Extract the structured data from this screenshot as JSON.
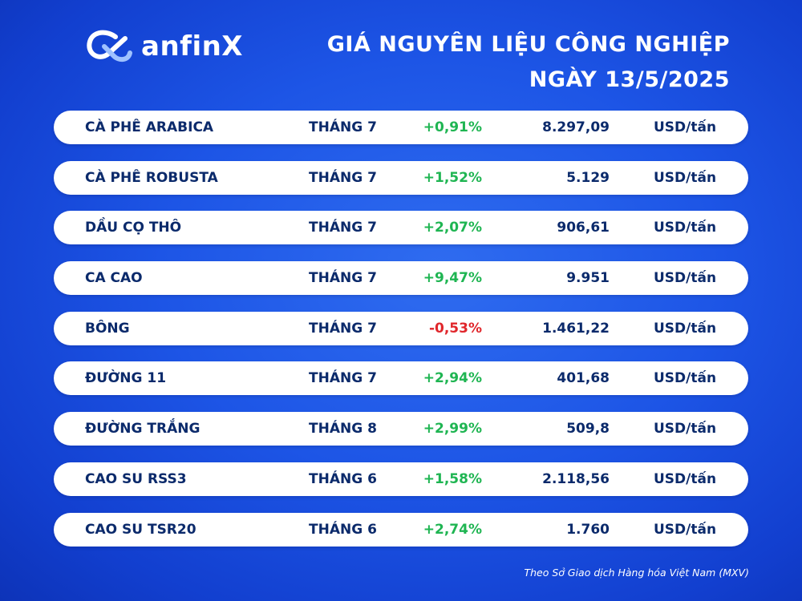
{
  "brand": {
    "name": "anfinX"
  },
  "header": {
    "title_line1": "GIÁ NGUYÊN LIỆU CÔNG NGHIỆP",
    "title_line2": "NGÀY 13/5/2025"
  },
  "colors": {
    "positive": "#1fb552",
    "negative": "#e0262b",
    "text": "#0b2a6b"
  },
  "rows": [
    {
      "name": "CÀ PHÊ ARABICA",
      "month": "THÁNG 7",
      "change": "+0,91%",
      "direction": "up",
      "price": "8.297,09",
      "unit": "USD/tấn"
    },
    {
      "name": "CÀ PHÊ ROBUSTA",
      "month": "THÁNG 7",
      "change": "+1,52%",
      "direction": "up",
      "price": "5.129",
      "unit": "USD/tấn"
    },
    {
      "name": "DẦU CỌ THÔ",
      "month": "THÁNG 7",
      "change": "+2,07%",
      "direction": "up",
      "price": "906,61",
      "unit": "USD/tấn"
    },
    {
      "name": "CA CAO",
      "month": "THÁNG 7",
      "change": "+9,47%",
      "direction": "up",
      "price": "9.951",
      "unit": "USD/tấn"
    },
    {
      "name": "BÔNG",
      "month": "THÁNG 7",
      "change": "-0,53%",
      "direction": "down",
      "price": "1.461,22",
      "unit": "USD/tấn"
    },
    {
      "name": "ĐƯỜNG 11",
      "month": "THÁNG 7",
      "change": "+2,94%",
      "direction": "up",
      "price": "401,68",
      "unit": "USD/tấn"
    },
    {
      "name": "ĐƯỜNG TRẮNG",
      "month": "THÁNG 8",
      "change": "+2,99%",
      "direction": "up",
      "price": "509,8",
      "unit": "USD/tấn"
    },
    {
      "name": "CAO SU RSS3",
      "month": "THÁNG 6",
      "change": "+1,58%",
      "direction": "up",
      "price": "2.118,56",
      "unit": "USD/tấn"
    },
    {
      "name": "CAO SU TSR20",
      "month": "THÁNG 6",
      "change": "+2,74%",
      "direction": "up",
      "price": "1.760",
      "unit": "USD/tấn"
    }
  ],
  "footer": {
    "source": "Theo Sở Giao dịch Hàng hóa Việt Nam (MXV)"
  }
}
